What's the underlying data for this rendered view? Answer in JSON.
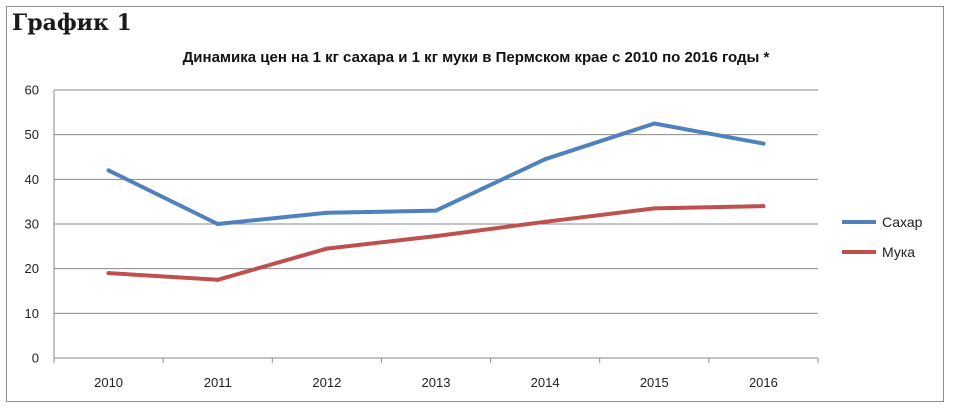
{
  "figure": {
    "heading": "График 1"
  },
  "chart_data": {
    "type": "line",
    "title": "Динамика цен на 1 кг сахара и 1 кг муки в Пермском крае с 2010 по 2016 годы *",
    "xlabel": "",
    "ylabel": "",
    "x": [
      "2010",
      "2011",
      "2012",
      "2013",
      "2014",
      "2015",
      "2016"
    ],
    "ylim": [
      0,
      60
    ],
    "yticks": [
      0,
      10,
      20,
      30,
      40,
      50,
      60
    ],
    "grid": true,
    "legend_position": "right",
    "series": [
      {
        "name": "Сахар",
        "color": "#4f81bd",
        "values": [
          42,
          30,
          32.5,
          33,
          44.5,
          52.5,
          48
        ]
      },
      {
        "name": "Мука",
        "color": "#c0504d",
        "values": [
          19,
          17.5,
          24.5,
          27.3,
          30.5,
          33.5,
          34
        ]
      }
    ]
  }
}
